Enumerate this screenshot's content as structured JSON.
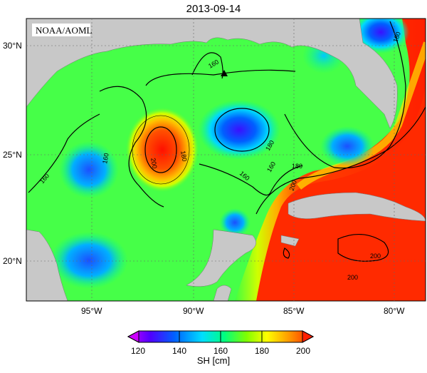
{
  "title": "2013-09-14",
  "source_label": "NOAA/AOML",
  "lat_labels": [
    "30°N",
    "25°N",
    "20°N"
  ],
  "lon_labels": [
    "95°W",
    "90°W",
    "85°W",
    "80°W"
  ],
  "contour_labels": [
    "160",
    "180",
    "200",
    "180",
    "160",
    "160",
    "180",
    "200",
    "200",
    "180",
    "160",
    "180",
    "160",
    "200",
    "180"
  ],
  "colorbar": {
    "label": "SH [cm]",
    "ticks": [
      "120",
      "140",
      "160",
      "180",
      "200"
    ],
    "min": 120,
    "max": 200,
    "colors": [
      "#cc00ff",
      "#5000ff",
      "#0060ff",
      "#00ddff",
      "#00ff80",
      "#80ff00",
      "#ffff00",
      "#ff9900",
      "#ff2000"
    ]
  },
  "colors": {
    "land": "#c8c8c8",
    "contour": "#000000"
  },
  "marker": "triangle-marker"
}
